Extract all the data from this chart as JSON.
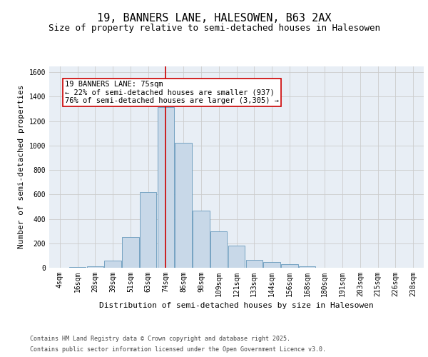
{
  "title": "19, BANNERS LANE, HALESOWEN, B63 2AX",
  "subtitle": "Size of property relative to semi-detached houses in Halesowen",
  "xlabel": "Distribution of semi-detached houses by size in Halesowen",
  "ylabel": "Number of semi-detached properties",
  "bar_labels": [
    "4sqm",
    "16sqm",
    "28sqm",
    "39sqm",
    "51sqm",
    "63sqm",
    "74sqm",
    "86sqm",
    "98sqm",
    "109sqm",
    "121sqm",
    "133sqm",
    "144sqm",
    "156sqm",
    "168sqm",
    "180sqm",
    "191sqm",
    "203sqm",
    "215sqm",
    "226sqm",
    "238sqm"
  ],
  "bar_values": [
    0,
    5,
    10,
    60,
    250,
    620,
    1315,
    1020,
    470,
    300,
    180,
    65,
    45,
    30,
    10,
    0,
    0,
    0,
    0,
    0,
    0
  ],
  "bar_color": "#c8d8e8",
  "bar_edge_color": "#6699bb",
  "vline_color": "#cc0000",
  "vline_x_index": 6.0,
  "annotation_text": "19 BANNERS LANE: 75sqm\n← 22% of semi-detached houses are smaller (937)\n76% of semi-detached houses are larger (3,305) →",
  "annotation_box_color": "#ffffff",
  "annotation_edge_color": "#cc0000",
  "ylim": [
    0,
    1650
  ],
  "yticks": [
    0,
    200,
    400,
    600,
    800,
    1000,
    1200,
    1400,
    1600
  ],
  "grid_color": "#cccccc",
  "background_color": "#e8eef5",
  "footer_line1": "Contains HM Land Registry data © Crown copyright and database right 2025.",
  "footer_line2": "Contains public sector information licensed under the Open Government Licence v3.0.",
  "title_fontsize": 11,
  "subtitle_fontsize": 9,
  "axis_label_fontsize": 8,
  "tick_fontsize": 7,
  "annotation_fontsize": 7.5,
  "footer_fontsize": 6
}
